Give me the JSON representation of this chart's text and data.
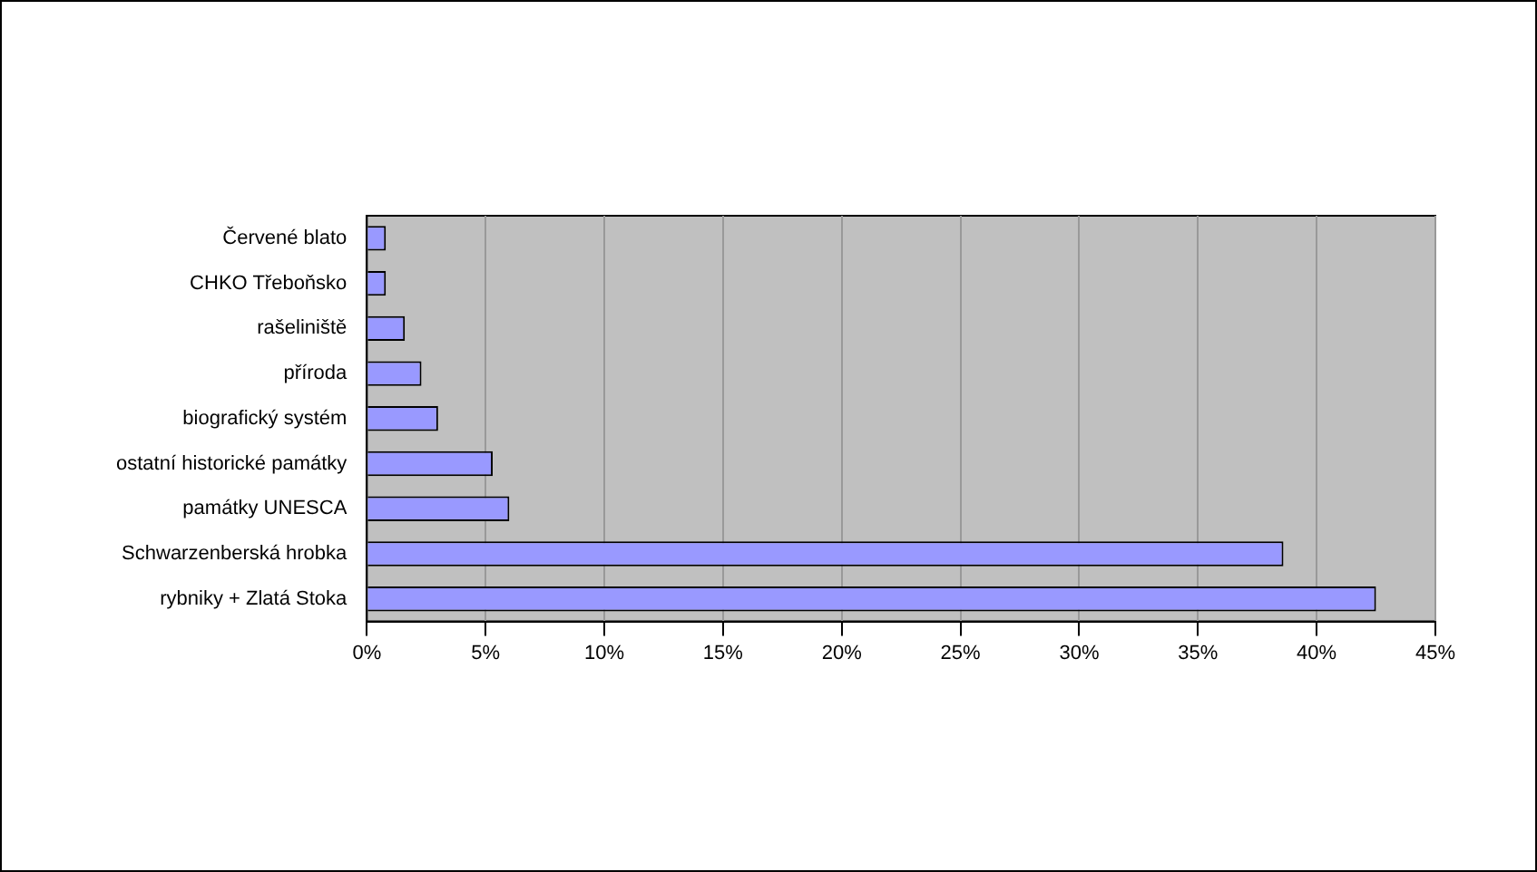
{
  "chart_data": {
    "type": "bar",
    "orientation": "horizontal",
    "categories": [
      "Červené blato",
      "CHKO Třeboňsko",
      "rašeliniště",
      "příroda",
      "biografický systém",
      "ostatní historické památky",
      "památky UNESCA",
      "Schwarzenberská hrobka",
      "rybniky + Zlatá Stoka"
    ],
    "values": [
      0.8,
      0.8,
      1.6,
      2.3,
      3.0,
      5.3,
      6.0,
      38.6,
      42.5
    ],
    "color": "#9999ff",
    "xlim": [
      0,
      45
    ],
    "xticks": [
      {
        "value": 0,
        "label": "0%"
      },
      {
        "value": 5,
        "label": "5%"
      },
      {
        "value": 10,
        "label": "10%"
      },
      {
        "value": 15,
        "label": "15%"
      },
      {
        "value": 20,
        "label": "20%"
      },
      {
        "value": 25,
        "label": "25%"
      },
      {
        "value": 30,
        "label": "30%"
      },
      {
        "value": 35,
        "label": "35%"
      },
      {
        "value": 40,
        "label": "40%"
      },
      {
        "value": 45,
        "label": "45%"
      }
    ],
    "grid": "x",
    "legend": false
  }
}
